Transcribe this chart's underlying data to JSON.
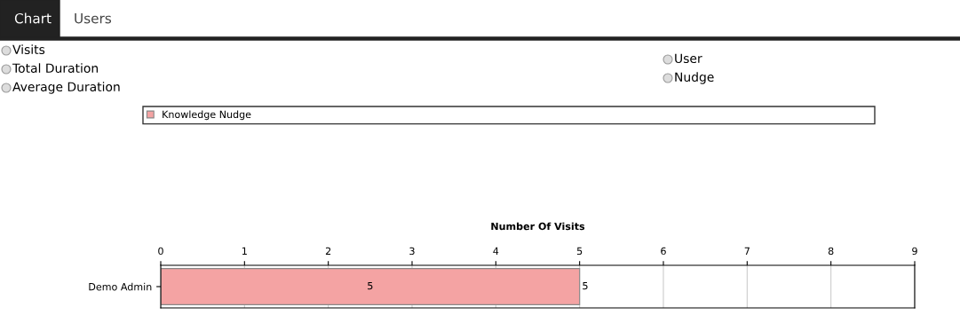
{
  "chart_data": {
    "type": "bar",
    "orientation": "horizontal",
    "xlabel": "Number Of Visits",
    "categories": [
      "Demo Admin"
    ],
    "series": [
      {
        "name": "Knowledge Nudge",
        "color": "#f4a3a3",
        "values": [
          5
        ],
        "value_labels": [
          "5"
        ]
      }
    ],
    "xlim": [
      0,
      9
    ],
    "xticks": [
      0,
      1,
      2,
      3,
      4,
      5,
      6,
      7,
      8,
      9
    ],
    "grid": "x",
    "legend": "top",
    "annotations": [
      "Chart",
      "Users",
      "Visits",
      "Total Duration",
      "Average Duration",
      "User",
      "Nudge",
      {
        "text": "5",
        "x": 5
      }
    ]
  }
}
